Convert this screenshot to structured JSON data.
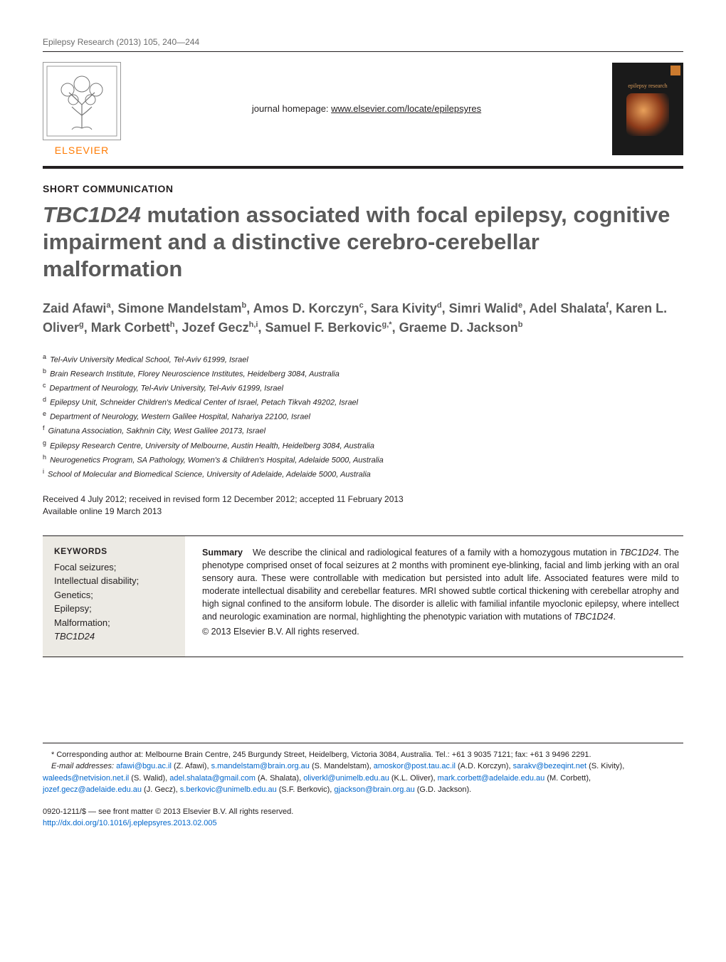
{
  "runningHead": "Epilepsy Research (2013) 105, 240—244",
  "journalHomepageLabel": "journal homepage: ",
  "journalHomepageUrl": "www.elsevier.com/locate/epilepsyres",
  "publisherWordmark": "ELSEVIER",
  "coverJournalName": "epilepsy research",
  "sectionLabel": "SHORT COMMUNICATION",
  "title_pre": "TBC1D24",
  "title_rest": " mutation associated with focal epilepsy, cognitive impairment and a distinctive cerebro-cerebellar malformation",
  "authors": [
    {
      "name": "Zaid Afawi",
      "sup": "a"
    },
    {
      "name": "Simone Mandelstam",
      "sup": "b"
    },
    {
      "name": "Amos D. Korczyn",
      "sup": "c"
    },
    {
      "name": "Sara Kivity",
      "sup": "d"
    },
    {
      "name": "Simri Walid",
      "sup": "e"
    },
    {
      "name": "Adel Shalata",
      "sup": "f"
    },
    {
      "name": "Karen L. Oliver",
      "sup": "g"
    },
    {
      "name": "Mark Corbett",
      "sup": "h"
    },
    {
      "name": "Jozef Gecz",
      "sup": "h,i"
    },
    {
      "name": "Samuel F. Berkovic",
      "sup": "g,*"
    },
    {
      "name": "Graeme D. Jackson",
      "sup": "b"
    }
  ],
  "affiliations": [
    {
      "sup": "a",
      "text": "Tel-Aviv University Medical School, Tel-Aviv 61999, Israel"
    },
    {
      "sup": "b",
      "text": "Brain Research Institute, Florey Neuroscience Institutes, Heidelberg 3084, Australia"
    },
    {
      "sup": "c",
      "text": "Department of Neurology, Tel-Aviv University, Tel-Aviv 61999, Israel"
    },
    {
      "sup": "d",
      "text": "Epilepsy Unit, Schneider Children's Medical Center of Israel, Petach Tikvah 49202, Israel"
    },
    {
      "sup": "e",
      "text": "Department of Neurology, Western Galilee Hospital, Nahariya 22100, Israel"
    },
    {
      "sup": "f",
      "text": "Ginatuna Association, Sakhnin City, West Galilee 20173, Israel"
    },
    {
      "sup": "g",
      "text": "Epilepsy Research Centre, University of Melbourne, Austin Health, Heidelberg 3084, Australia"
    },
    {
      "sup": "h",
      "text": "Neurogenetics Program, SA Pathology, Women's & Children's Hospital, Adelaide 5000, Australia"
    },
    {
      "sup": "i",
      "text": "School of Molecular and Biomedical Science, University of Adelaide, Adelaide 5000, Australia"
    }
  ],
  "received": "Received 4 July 2012; received in revised form 12 December 2012; accepted 11 February 2013",
  "availableOnline": "Available online 19 March 2013",
  "keywordsHead": "KEYWORDS",
  "keywords": "Focal seizures;\nIntellectual disability;\nGenetics;\nEpilepsy;\nMalformation;\nTBC1D24",
  "summaryLead": "Summary",
  "summaryBody": "We describe the clinical and radiological features of a family with a homozygous mutation in TBC1D24. The phenotype comprised onset of focal seizures at 2 months with prominent eye-blinking, facial and limb jerking with an oral sensory aura. These were controllable with medication but persisted into adult life. Associated features were mild to moderate intellectual disability and cerebellar features. MRI showed subtle cortical thickening with cerebellar atrophy and high signal confined to the ansiform lobule. The disorder is allelic with familial infantile myoclonic epilepsy, where intellect and neurologic examination are normal, highlighting the phenotypic variation with mutations of TBC1D24.",
  "copyrightLine": "© 2013 Elsevier B.V. All rights reserved.",
  "correspondingLabel": "* Corresponding author at: ",
  "correspondingText": "Melbourne Brain Centre, 245 Burgundy Street, Heidelberg, Victoria 3084, Australia. Tel.: +61 3 9035 7121; fax: +61 3 9496 2291.",
  "emailLabel": "E-mail addresses: ",
  "emails": [
    {
      "addr": "afawi@bgu.ac.il",
      "who": "(Z. Afawi)"
    },
    {
      "addr": "s.mandelstam@brain.org.au",
      "who": "(S. Mandelstam)"
    },
    {
      "addr": "amoskor@post.tau.ac.il",
      "who": "(A.D. Korczyn)"
    },
    {
      "addr": "sarakv@bezeqint.net",
      "who": "(S. Kivity)"
    },
    {
      "addr": "waleeds@netvision.net.il",
      "who": "(S. Walid)"
    },
    {
      "addr": "adel.shalata@gmail.com",
      "who": "(A. Shalata)"
    },
    {
      "addr": "oliverkl@unimelb.edu.au",
      "who": "(K.L. Oliver)"
    },
    {
      "addr": "mark.corbett@adelaide.edu.au",
      "who": "(M. Corbett)"
    },
    {
      "addr": "jozef.gecz@adelaide.edu.au",
      "who": "(J. Gecz)"
    },
    {
      "addr": "s.berkovic@unimelb.edu.au",
      "who": "(S.F. Berkovic)"
    },
    {
      "addr": "gjackson@brain.org.au",
      "who": "(G.D. Jackson)"
    }
  ],
  "frontMatter": "0920-1211/$ — see front matter © 2013 Elsevier B.V. All rights reserved.",
  "doi": "http://dx.doi.org/10.1016/j.eplepsyres.2013.02.005",
  "colors": {
    "text": "#231f20",
    "titleGrey": "#5a5a5a",
    "link": "#0066cc",
    "elsevierOrange": "#ff7a00",
    "kwBg": "#eceae4"
  }
}
